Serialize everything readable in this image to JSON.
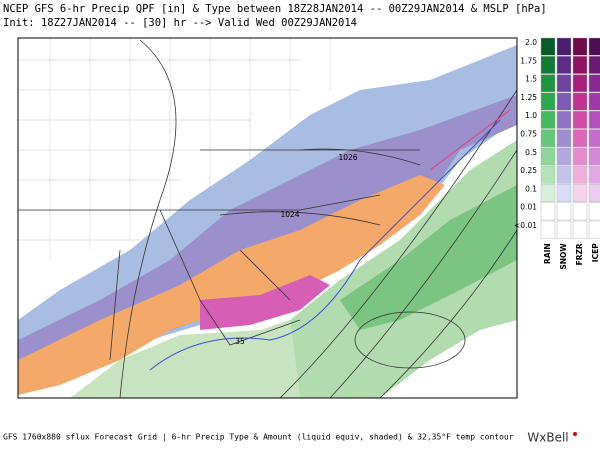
{
  "header": {
    "line1": "NCEP GFS 6-hr Precip QPF [in] & Type between 18Z28JAN2014 -- 00Z29JAN2014 & MSLP [hPa]",
    "line2": "Init: 18Z27JAN2014 -- [30] hr --> Valid Wed 00Z29JAN2014"
  },
  "map": {
    "contour_labels": [
      "1026",
      "1024",
      "35"
    ]
  },
  "legend": {
    "labels": [
      "2.0",
      "1.75",
      "1.5",
      "1.25",
      "1.0",
      "0.75",
      "0.5",
      "0.25",
      "0.1",
      "0.01",
      "<0.01"
    ],
    "columns": [
      "RAIN",
      "SNOW",
      "FRZR",
      "ICEP"
    ]
  },
  "footer": {
    "caption": "GFS 1760x880 sflux Forecast Grid | 6-hr Precip Type & Amount (liquid equiv, shaded) & 32,35°F temp contour",
    "brand": "WxBell"
  }
}
